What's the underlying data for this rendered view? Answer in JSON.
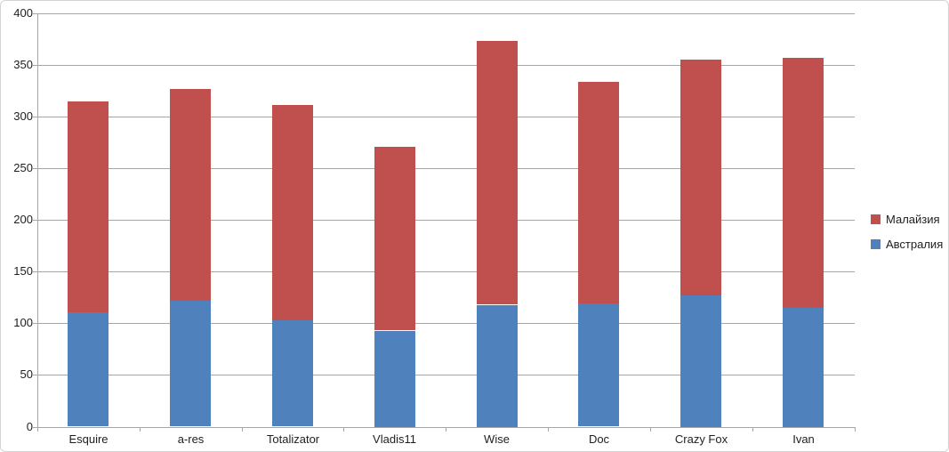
{
  "chart_data": {
    "type": "bar",
    "stacked": true,
    "title": "",
    "xlabel": "",
    "ylabel": "",
    "categories": [
      "Esquire",
      "a-res",
      "Totalizator",
      "Vladis11",
      "Wise",
      "Doc",
      "Crazy Fox",
      "Ivan"
    ],
    "series": [
      {
        "name": "Австралия",
        "color": "#4f81bd",
        "values": [
          111,
          122,
          103,
          93,
          118,
          119,
          127,
          115
        ]
      },
      {
        "name": "Малайзия",
        "color": "#c0504d",
        "values": [
          204,
          205,
          208,
          178,
          255,
          215,
          228,
          242
        ]
      }
    ],
    "stacked_totals": [
      315,
      327,
      311,
      271,
      373,
      334,
      355,
      357
    ],
    "ylim": [
      0,
      400
    ],
    "yticks": [
      0,
      50,
      100,
      150,
      200,
      250,
      300,
      350,
      400
    ],
    "grid": true,
    "legend": {
      "position": "right",
      "items": [
        "Малайзия",
        "Австралия"
      ]
    }
  },
  "styles": {
    "gridline_color": "#a6a6a6",
    "axis_color": "#a6a6a6",
    "text_color": "#1e1e1e",
    "frame_border_color": "#d3d3d3",
    "background": "#ffffff"
  }
}
